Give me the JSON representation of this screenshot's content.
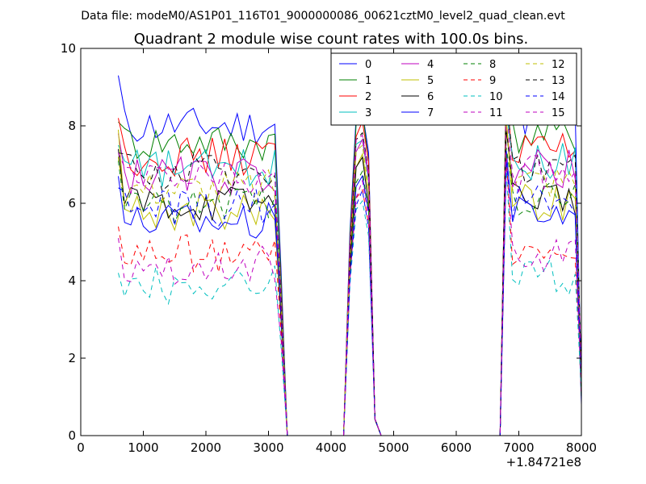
{
  "chart_data": {
    "type": "line",
    "suptitle": "Data file: modeM0/AS1P01_116T01_9000000086_00621cztM0_level2_quad_clean.evt",
    "title": "Quadrant 2 module wise count rates with 100.0s bins.",
    "xlabel": "",
    "ylabel": "",
    "x_offset_label": "+1.84721e8",
    "xlim": [
      0,
      8000
    ],
    "ylim": [
      0,
      10
    ],
    "x_ticks": [
      0,
      1000,
      2000,
      3000,
      4000,
      5000,
      6000,
      7000,
      8000
    ],
    "y_ticks": [
      0,
      2,
      4,
      6,
      8,
      10
    ],
    "x_tick_labels": [
      "0",
      "1000",
      "2000",
      "3000",
      "4000",
      "5000",
      "6000",
      "7000",
      "8000"
    ],
    "y_tick_labels": [
      "0",
      "2",
      "4",
      "6",
      "8",
      "10"
    ],
    "grid": false,
    "legend_position": "top-right",
    "series": [
      {
        "name": "0",
        "color": "#0000ff",
        "dash": "solid",
        "base": 8.0,
        "values_seg1_start": 9.3,
        "orbit_peak": 8.3
      },
      {
        "name": "1",
        "color": "#008000",
        "dash": "solid",
        "base": 7.6,
        "values_seg1_start": 8.1,
        "orbit_peak": 8.2
      },
      {
        "name": "2",
        "color": "#ff0000",
        "dash": "solid",
        "base": 7.2,
        "values_seg1_start": 8.2,
        "orbit_peak": 8.0
      },
      {
        "name": "3",
        "color": "#00bfbf",
        "dash": "solid",
        "base": 6.9,
        "values_seg1_start": 7.5,
        "orbit_peak": 7.6
      },
      {
        "name": "4",
        "color": "#bf00bf",
        "dash": "solid",
        "base": 6.7,
        "values_seg1_start": 7.8,
        "orbit_peak": 7.5
      },
      {
        "name": "5",
        "color": "#bfbf00",
        "dash": "solid",
        "base": 5.8,
        "values_seg1_start": 7.9,
        "orbit_peak": 7.2
      },
      {
        "name": "6",
        "color": "#000000",
        "dash": "solid",
        "base": 6.0,
        "values_seg1_start": 7.4,
        "orbit_peak": 7.0
      },
      {
        "name": "7",
        "color": "#0000ff",
        "dash": "solid",
        "base": 5.6,
        "values_seg1_start": 6.7,
        "orbit_peak": 6.6
      },
      {
        "name": "8",
        "color": "#008000",
        "dash": "dashed",
        "base": 6.0,
        "values_seg1_start": 7.1,
        "orbit_peak": 6.8
      },
      {
        "name": "9",
        "color": "#ff0000",
        "dash": "dashed",
        "base": 4.7,
        "values_seg1_start": 5.4,
        "orbit_peak": 6.2
      },
      {
        "name": "10",
        "color": "#00bfbf",
        "dash": "dashed",
        "base": 3.9,
        "values_seg1_start": 4.2,
        "orbit_peak": 6.0
      },
      {
        "name": "11",
        "color": "#bf00bf",
        "dash": "dashed",
        "base": 4.4,
        "values_seg1_start": 5.1,
        "orbit_peak": 6.4
      },
      {
        "name": "12",
        "color": "#bfbf00",
        "dash": "dashed",
        "base": 6.4,
        "values_seg1_start": 7.2,
        "orbit_peak": 7.4
      },
      {
        "name": "13",
        "color": "#000000",
        "dash": "dashed",
        "base": 6.8,
        "values_seg1_start": 7.3,
        "orbit_peak": 7.8
      },
      {
        "name": "14",
        "color": "#0000ff",
        "dash": "dashed",
        "base": 5.9,
        "values_seg1_start": 6.4,
        "orbit_peak": 6.2
      },
      {
        "name": "15",
        "color": "#bf00bf",
        "dash": "dashed",
        "base": 6.6,
        "values_seg1_start": 7.3,
        "orbit_peak": 7.7
      }
    ],
    "segments": [
      {
        "x_start": 600,
        "x_end": 3200,
        "step": 100
      },
      {
        "x_start": 4200,
        "x_end": 4800,
        "step": 100
      },
      {
        "x_start": 6700,
        "x_end": 8000,
        "step": 100
      }
    ]
  }
}
